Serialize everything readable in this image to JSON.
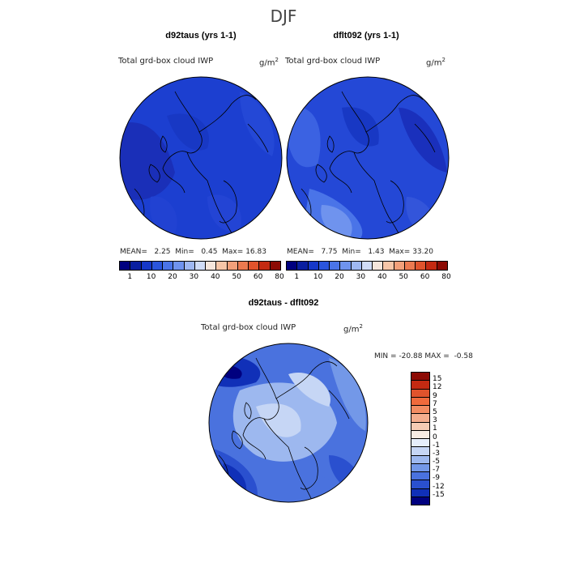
{
  "title": "DJF",
  "panels": [
    {
      "name": "d92taus (yrs 1-1)",
      "variable": "Total grd-box cloud IWP",
      "units": "g/m",
      "units_sup": "2",
      "mean_label": "MEAN=",
      "mean": "2.25",
      "min_label": "Min=",
      "min": "0.45",
      "max_label": "Max=",
      "max": "16.83"
    },
    {
      "name": "dflt092 (yrs 1-1)",
      "variable": "Total grd-box cloud IWP",
      "units": "g/m",
      "units_sup": "2",
      "mean_label": "MEAN=",
      "mean": "7.75",
      "min_label": "Min=",
      "min": "1.43",
      "max_label": "Max=",
      "max": "33.20"
    }
  ],
  "colorbar": {
    "colors": [
      "#00007f",
      "#0a1fa0",
      "#1638c8",
      "#2a55dc",
      "#4a74e8",
      "#6f93ee",
      "#9fb8f2",
      "#d0dcf7",
      "#f5e6dc",
      "#f6c6a8",
      "#f2a07a",
      "#ec7a50",
      "#e0532c",
      "#c42a12",
      "#8c0a04"
    ],
    "labels": [
      "1",
      "10",
      "20",
      "30",
      "40",
      "50",
      "60",
      "80"
    ]
  },
  "diff_panel": {
    "name": "d92taus - dflt092",
    "variable": "Total grd-box cloud IWP",
    "units": "g/m",
    "units_sup": "2",
    "min_label": "MIN =",
    "min": "-20.88",
    "max_label": "MAX =",
    "max": "-0.58",
    "legend": {
      "colors": [
        "#8c0a04",
        "#c42a12",
        "#e0532c",
        "#f06a3c",
        "#f28c62",
        "#f3ae8e",
        "#f5ccb4",
        "#f7ece4",
        "#e6eefb",
        "#c6d6f5",
        "#9db8ef",
        "#7398e8",
        "#4a72de",
        "#2a50cf",
        "#1030b8",
        "#00007f"
      ],
      "labels": [
        "15",
        "12",
        "9",
        "7",
        "5",
        "3",
        "1",
        "0",
        "-1",
        "-3",
        "-5",
        "-7",
        "-9",
        "-12",
        "-15"
      ]
    }
  }
}
